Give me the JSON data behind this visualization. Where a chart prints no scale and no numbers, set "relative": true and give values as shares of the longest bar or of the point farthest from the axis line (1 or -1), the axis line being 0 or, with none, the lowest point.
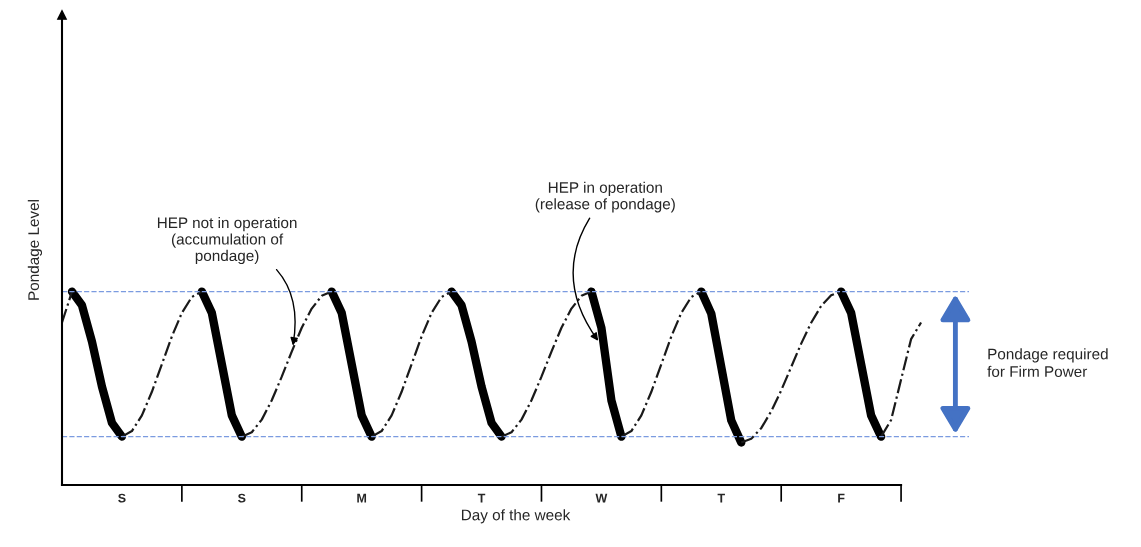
{
  "chart_data": {
    "type": "line",
    "relative": true,
    "xlabel": "Day of the week",
    "ylabel": "Pondage Level",
    "categories": [
      null,
      null,
      null,
      null,
      null,
      null,
      "S",
      null,
      null,
      null,
      null,
      null,
      null,
      null,
      null,
      null,
      null,
      null,
      "S",
      null,
      null,
      null,
      null,
      null,
      null,
      null,
      null,
      null,
      null,
      null,
      "M",
      null,
      null,
      null,
      null,
      null,
      null,
      null,
      null,
      null,
      null,
      null,
      "T",
      null,
      null,
      null,
      null,
      null,
      null,
      null,
      null,
      null,
      null,
      null,
      "W",
      null,
      null,
      null,
      null,
      null,
      null,
      null,
      null,
      null,
      null,
      null,
      "T",
      null,
      null,
      null,
      null,
      null,
      null,
      null,
      null,
      null,
      null,
      null,
      "F",
      null,
      null,
      null,
      null,
      null,
      null,
      null,
      null
    ],
    "series": [
      {
        "color": "#000000",
        "line_style": "solid",
        "values": [
          null,
          1,
          0.929,
          0.741,
          0.509,
          0.321,
          0.25,
          null,
          null,
          null,
          null,
          null,
          null,
          null,
          1,
          0.89,
          0.625,
          0.36,
          0.25,
          null,
          null,
          null,
          null,
          null,
          null,
          null,
          null,
          1,
          0.89,
          0.625,
          0.36,
          0.25,
          null,
          null,
          null,
          null,
          null,
          null,
          null,
          1,
          0.929,
          0.741,
          0.509,
          0.321,
          0.25,
          null,
          null,
          null,
          null,
          null,
          null,
          null,
          null,
          1,
          0.813,
          0.438,
          0.25,
          null,
          null,
          null,
          null,
          null,
          null,
          null,
          1,
          0.886,
          0.61,
          0.334,
          0.22,
          null,
          null,
          null,
          null,
          null,
          null,
          null,
          null,
          null,
          1,
          0.89,
          0.625,
          0.36,
          0.25,
          null,
          null,
          null,
          null
        ]
      },
      {
        "color": "#1a1a1a",
        "line_style": "dashdot",
        "values": [
          0.84,
          1,
          null,
          null,
          null,
          null,
          0.25,
          0.279,
          0.36,
          0.482,
          0.625,
          0.768,
          0.89,
          0.972,
          1,
          null,
          null,
          null,
          0.25,
          0.273,
          0.338,
          0.438,
          0.56,
          0.69,
          0.813,
          0.912,
          0.978,
          1,
          null,
          null,
          null,
          0.25,
          0.279,
          0.36,
          0.482,
          0.625,
          0.768,
          0.89,
          0.972,
          1,
          null,
          null,
          null,
          null,
          0.25,
          0.273,
          0.338,
          0.438,
          0.56,
          0.69,
          0.813,
          0.912,
          0.978,
          1,
          null,
          null,
          0.25,
          0.279,
          0.36,
          0.482,
          0.625,
          0.768,
          0.89,
          0.972,
          1,
          null,
          null,
          null,
          0.22,
          0.239,
          0.294,
          0.381,
          0.489,
          0.61,
          0.731,
          0.839,
          0.926,
          0.981,
          1,
          null,
          null,
          null,
          0.25,
          0.336,
          0.545,
          0.754,
          0.84
        ]
      }
    ],
    "ref_lines": [
      {
        "axis": "y",
        "value": 1,
        "color": "#7b9be0",
        "line_style": "dashed"
      },
      {
        "axis": "y",
        "value": 0.25,
        "color": "#7b9be0",
        "line_style": "dashed"
      }
    ],
    "annotations": [
      "HEP not in operation\n(accumulation of\npondage)",
      "HEP in operation\n(release of pondage)",
      "Pondage required\nfor Firm Power"
    ],
    "grid": false,
    "legend": false
  }
}
